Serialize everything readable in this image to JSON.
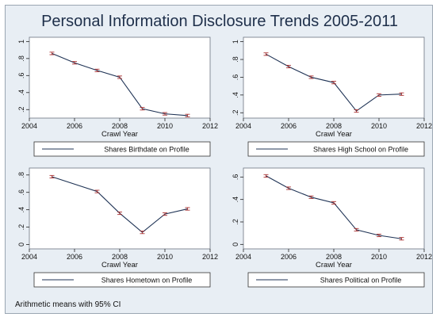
{
  "title": "Personal Information Disclosure Trends 2005-2011",
  "footnote": "Arithmetic means with 95% CI",
  "chart_data": [
    {
      "type": "line",
      "xlabel": "Crawl Year",
      "ylabel": "",
      "xlim": [
        2004,
        2012
      ],
      "xticks": [
        2004,
        2006,
        2008,
        2010,
        2012
      ],
      "ylim": [
        0.1,
        1.05
      ],
      "yticks": [
        0.2,
        0.4,
        0.6,
        0.8,
        1
      ],
      "ytick_labels": [
        ".2",
        ".4",
        ".6",
        ".8",
        "1"
      ],
      "series": [
        {
          "name": "Shares Birthdate on Profile",
          "x": [
            2005,
            2006,
            2007,
            2008,
            2009,
            2010,
            2011
          ],
          "y": [
            0.86,
            0.75,
            0.66,
            0.58,
            0.21,
            0.15,
            0.13
          ]
        }
      ]
    },
    {
      "type": "line",
      "xlabel": "Crawl Year",
      "ylabel": "",
      "xlim": [
        2004,
        2012
      ],
      "xticks": [
        2004,
        2006,
        2008,
        2010,
        2012
      ],
      "ylim": [
        0.14,
        1.05
      ],
      "yticks": [
        0.2,
        0.4,
        0.6,
        0.8,
        1
      ],
      "ytick_labels": [
        ".2",
        ".4",
        ".6",
        ".8",
        "1"
      ],
      "series": [
        {
          "name": "Shares High School on Profile",
          "x": [
            2005,
            2006,
            2007,
            2008,
            2009,
            2010,
            2011
          ],
          "y": [
            0.86,
            0.72,
            0.6,
            0.54,
            0.22,
            0.4,
            0.41
          ]
        }
      ]
    },
    {
      "type": "line",
      "xlabel": "Crawl Year",
      "ylabel": "",
      "xlim": [
        2004,
        2012
      ],
      "xticks": [
        2004,
        2006,
        2008,
        2010,
        2012
      ],
      "ylim": [
        -0.05,
        0.88
      ],
      "yticks": [
        0,
        0.2,
        0.4,
        0.6,
        0.8
      ],
      "ytick_labels": [
        "0",
        ".2",
        ".4",
        ".6",
        ".8"
      ],
      "series": [
        {
          "name": "Shares Hometown on Profile",
          "x": [
            2005,
            2007,
            2008,
            2009,
            2010,
            2011
          ],
          "y": [
            0.78,
            0.61,
            0.36,
            0.14,
            0.35,
            0.41
          ]
        }
      ]
    },
    {
      "type": "line",
      "xlabel": "Crawl Year",
      "ylabel": "",
      "xlim": [
        2004,
        2012
      ],
      "xticks": [
        2004,
        2006,
        2008,
        2010,
        2012
      ],
      "ylim": [
        -0.04,
        0.68
      ],
      "yticks": [
        0,
        0.2,
        0.4,
        0.6
      ],
      "ytick_labels": [
        "0",
        ".2",
        ".4",
        ".6"
      ],
      "series": [
        {
          "name": "Shares Political on Profile",
          "x": [
            2005,
            2006,
            2007,
            2008,
            2009,
            2010,
            2011
          ],
          "y": [
            0.61,
            0.5,
            0.42,
            0.37,
            0.13,
            0.08,
            0.05
          ]
        }
      ]
    }
  ]
}
